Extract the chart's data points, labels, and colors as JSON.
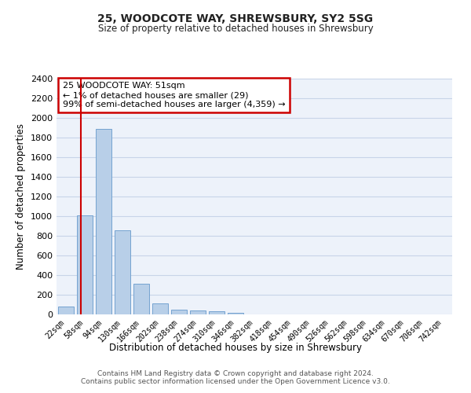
{
  "title": "25, WOODCOTE WAY, SHREWSBURY, SY2 5SG",
  "subtitle": "Size of property relative to detached houses in Shrewsbury",
  "xlabel": "Distribution of detached houses by size in Shrewsbury",
  "ylabel": "Number of detached properties",
  "bar_labels": [
    "22sqm",
    "58sqm",
    "94sqm",
    "130sqm",
    "166sqm",
    "202sqm",
    "238sqm",
    "274sqm",
    "310sqm",
    "346sqm",
    "382sqm",
    "418sqm",
    "454sqm",
    "490sqm",
    "526sqm",
    "562sqm",
    "598sqm",
    "634sqm",
    "670sqm",
    "706sqm",
    "742sqm"
  ],
  "bar_values": [
    80,
    1010,
    1890,
    860,
    315,
    115,
    48,
    38,
    30,
    15,
    0,
    0,
    0,
    0,
    0,
    0,
    0,
    0,
    0,
    0,
    0
  ],
  "bar_color": "#b8cfe8",
  "bar_edge_color": "#6699cc",
  "annotation_title": "25 WOODCOTE WAY: 51sqm",
  "annotation_line1": "← 1% of detached houses are smaller (29)",
  "annotation_line2": "99% of semi-detached houses are larger (4,359) →",
  "annotation_box_color": "#ffffff",
  "annotation_box_edge_color": "#cc0000",
  "vline_color": "#cc0000",
  "ylim": [
    0,
    2400
  ],
  "yticks": [
    0,
    200,
    400,
    600,
    800,
    1000,
    1200,
    1400,
    1600,
    1800,
    2000,
    2200,
    2400
  ],
  "grid_color": "#c8d4e8",
  "bg_color": "#edf2fa",
  "footer1": "Contains HM Land Registry data © Crown copyright and database right 2024.",
  "footer2": "Contains public sector information licensed under the Open Government Licence v3.0."
}
